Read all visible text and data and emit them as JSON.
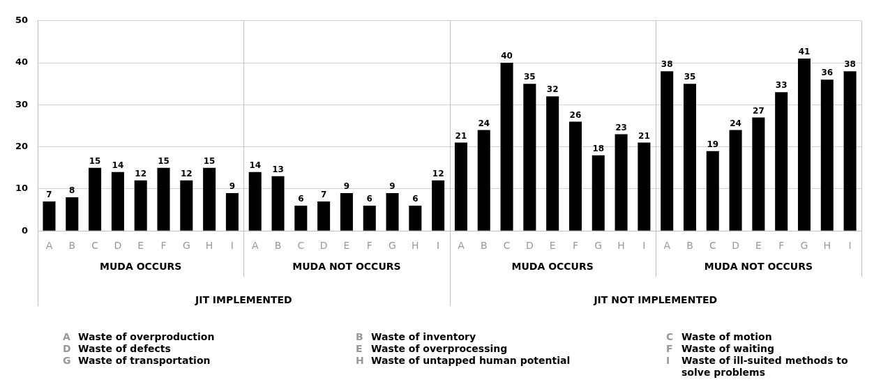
{
  "chart_data": {
    "type": "bar",
    "categories": [
      "A",
      "B",
      "C",
      "D",
      "E",
      "F",
      "G",
      "H",
      "I",
      "A",
      "B",
      "C",
      "D",
      "E",
      "F",
      "G",
      "H",
      "I",
      "A",
      "B",
      "C",
      "D",
      "E",
      "F",
      "G",
      "H",
      "I",
      "A",
      "B",
      "C",
      "D",
      "E",
      "F",
      "G",
      "H",
      "I"
    ],
    "values": [
      7,
      8,
      15,
      14,
      12,
      15,
      12,
      15,
      9,
      14,
      13,
      6,
      7,
      9,
      6,
      9,
      6,
      12,
      21,
      24,
      40,
      35,
      32,
      26,
      18,
      23,
      21,
      38,
      35,
      19,
      24,
      27,
      33,
      41,
      36,
      38
    ],
    "color": "#000000",
    "data_labels": true,
    "ylim": [
      0,
      50
    ],
    "yticks": [
      0,
      10,
      20,
      30,
      40,
      50
    ],
    "grid": "y",
    "legend": false,
    "annotations": [
      "MUDA OCCURS",
      "MUDA NOT OCCURS",
      "MUDA OCCURS",
      "MUDA NOT OCCURS",
      "JIT IMPLEMENTED",
      "JIT NOT IMPLEMENTED",
      "A Waste of overproduction",
      "B Waste of inventory",
      "C Waste of motion",
      "D Waste of defects",
      "E Waste of overprocessing",
      "F Waste of waiting",
      "G Waste of transportation",
      "H Waste of untapped human potential",
      "I Waste of ill-suited methods to solve problems"
    ]
  }
}
